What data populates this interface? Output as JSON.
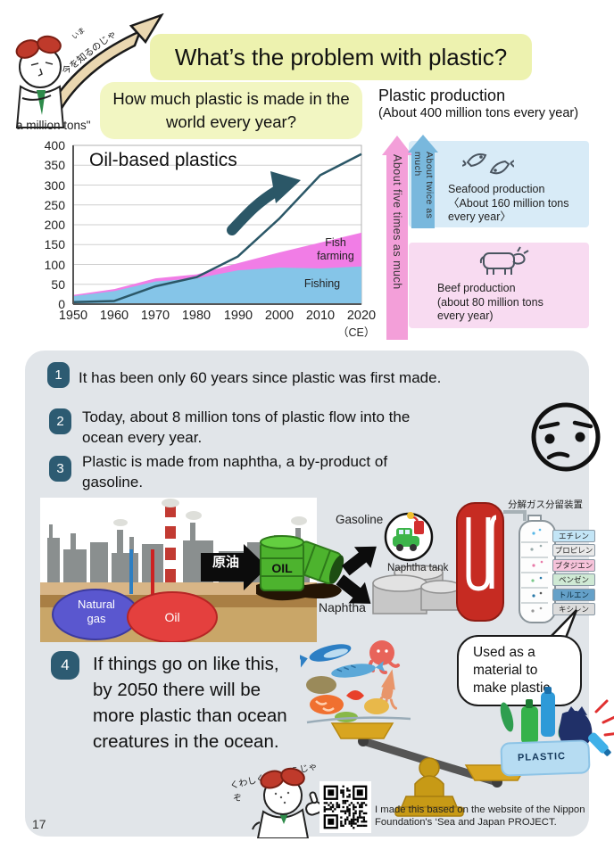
{
  "page": {
    "number": "17"
  },
  "header": {
    "title": "What’s the problem with plastic?",
    "question": "How much plastic is made in the\nworld every year?",
    "mascot_furigana": "いま",
    "mascot_speech": "今を知るのじゃ",
    "axis_unit": "a million tons\""
  },
  "production": {
    "title": "Plastic production",
    "subtitle": "(About 400 million tons every year)",
    "arrow_five_label": "About five times as much",
    "arrow_twice_label": "About twice as much",
    "seafood_text": "Seafood production\n〈About 160 million tons\nevery year〉",
    "beef_text": "Beef production\n(about 80 million tons\nevery year)"
  },
  "chart_data": {
    "type": "area+line",
    "title": "Oil-based plastics",
    "x": [
      1950,
      1960,
      1970,
      1980,
      1990,
      2000,
      2010,
      2020
    ],
    "series": [
      {
        "name": "Oil-based plastics",
        "type": "line",
        "color": "#2b5767",
        "values": [
          5,
          8,
          45,
          68,
          120,
          215,
          325,
          378
        ]
      },
      {
        "name": "Fish farming",
        "type": "area",
        "color": "#f17de6",
        "values": [
          23,
          38,
          65,
          75,
          103,
          130,
          155,
          180
        ]
      },
      {
        "name": "Fishing",
        "type": "area",
        "color": "#85c5e8",
        "values": [
          20,
          33,
          57,
          65,
          85,
          92,
          90,
          95
        ]
      }
    ],
    "ylim": [
      0,
      400
    ],
    "yticks": [
      "400",
      "350",
      "300",
      "250",
      "200",
      "150",
      "100",
      "50",
      "0"
    ],
    "xticks": [
      "1950",
      "1960",
      "1970",
      "1980",
      "1990",
      "2000",
      "2010",
      "2020"
    ],
    "xlabel": "（CE）",
    "grid": true,
    "area_labels": {
      "fish_farming": "Fish\nfarming",
      "fishing": "Fishing"
    }
  },
  "points": [
    {
      "num": "1",
      "text": "It has been only 60 years since plastic was first made."
    },
    {
      "num": "2",
      "text": "Today, about 8 million tons of plastic flow into the\nocean every year."
    },
    {
      "num": "3",
      "text": "Plastic is made from naphtha, a by-product of\ngasoline."
    },
    {
      "num": "4",
      "text": "If things go on like this,\nby 2050 there will be\nmore plastic than ocean\ncreatures in the ocean."
    }
  ],
  "diagram": {
    "natural_gas_label": "Natural\ngas",
    "oil_label": "Oil",
    "crude_oil_label": "原油",
    "barrel_label": "OIL",
    "gasoline_label": "Gasoline",
    "naphtha_tank_label": "Naphtha tank",
    "naphtha_label": "Naphtha",
    "cracked_gas_label": "分解ガス",
    "fractionator_label": "分留装置",
    "chemicals": [
      {
        "label": "エチレン",
        "color": "#c3e5f6"
      },
      {
        "label": "プロピレン",
        "color": "#e9e9e9"
      },
      {
        "label": "ブタジエン",
        "color": "#f6c3da"
      },
      {
        "label": "ベンゼン",
        "color": "#cfe9d4"
      },
      {
        "label": "トルエン",
        "color": "#64a0c8"
      },
      {
        "label": "キシレン",
        "color": "#dcdcdc"
      }
    ],
    "bubble_text": "Used as a\nmaterial to\nmake plastic"
  },
  "balance": {
    "plastic_label": "PLASTIC"
  },
  "footer": {
    "mascot_speech": "くわしくはこちらじゃぞ",
    "attribution": "I made this based on the website of the Nippon Foundation's ‘Sea and Japan PROJECT."
  },
  "colors": {
    "title_bg": "#edf2af",
    "question_bg": "#f2f6c2",
    "panel_bg": "#e1e5e9",
    "badge_bg": "#2d5b72",
    "arrow_five": "#f39fd9",
    "arrow_twice": "#79b8dd",
    "seafood_box": "#d8ebf7",
    "beef_box": "#f8dbf1",
    "fishing_area": "#85c5e8",
    "fish_farming_area": "#f17de6",
    "plastics_line": "#2b5767"
  }
}
